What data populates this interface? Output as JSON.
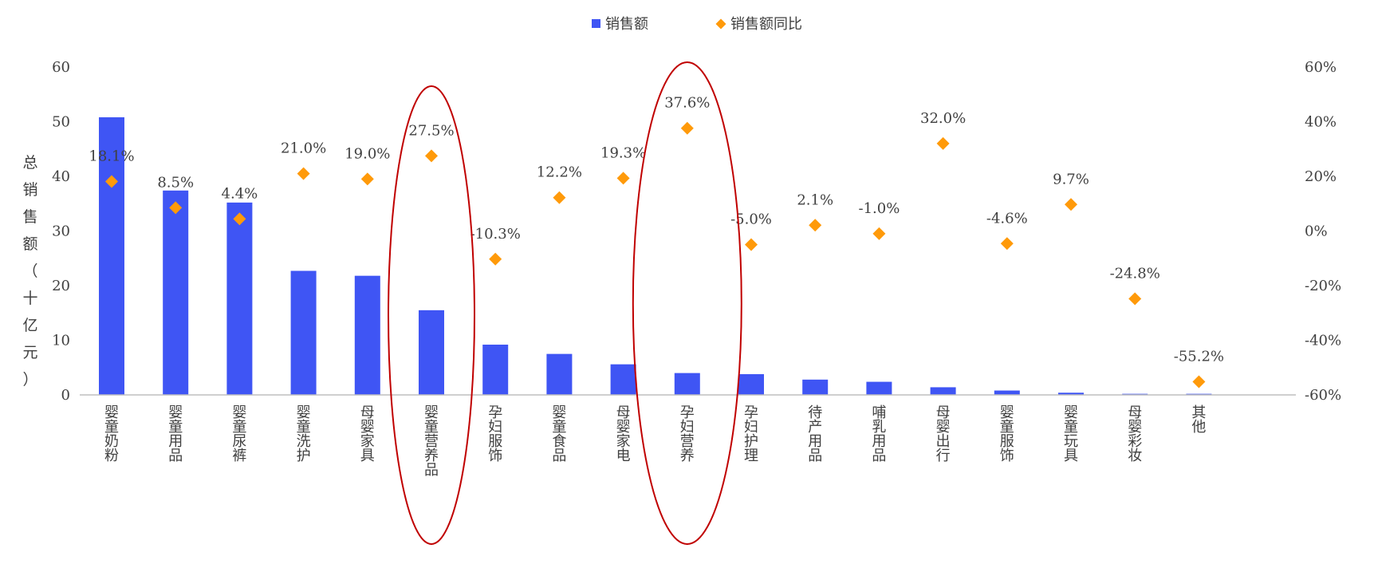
{
  "chart_data": {
    "type": "bar",
    "categories": [
      "婴童奶粉",
      "婴童用品",
      "婴童尿裤",
      "婴童洗护",
      "母婴家具",
      "婴童营养品",
      "孕妇服饰",
      "婴童食品",
      "母婴家电",
      "孕妇营养",
      "孕妇护理",
      "待产用品",
      "哺乳用品",
      "母婴出行",
      "婴童服饰",
      "婴童玩具",
      "母婴彩妆",
      "其他"
    ],
    "series": [
      {
        "name": "销售额",
        "type": "bar",
        "axis": "left",
        "color": "#3f55f4",
        "values": [
          50.8,
          37.4,
          35.2,
          22.7,
          21.8,
          15.5,
          9.2,
          7.5,
          5.6,
          4.0,
          3.8,
          2.8,
          2.4,
          1.4,
          0.8,
          0.4,
          0.2,
          0.2
        ]
      },
      {
        "name": "销售额同比",
        "type": "scatter",
        "axis": "right",
        "color": "#ff9a0a",
        "marker": "diamond",
        "values": [
          18.1,
          8.5,
          4.4,
          21.0,
          19.0,
          27.5,
          -10.3,
          12.2,
          19.3,
          37.6,
          -5.0,
          2.1,
          -1.0,
          32.0,
          -4.6,
          9.7,
          -24.8,
          -55.2
        ],
        "labels": [
          "18.1%",
          "8.5%",
          "4.4%",
          "21.0%",
          "19.0%",
          "27.5%",
          "-10.3%",
          "12.2%",
          "19.3%",
          "37.6%",
          "-5.0%",
          "2.1%",
          "-1.0%",
          "32.0%",
          "-4.6%",
          "9.7%",
          "-24.8%",
          "-55.2%"
        ]
      }
    ],
    "ylabel": "总销售额（十亿元）",
    "ylabel_chars": [
      "总",
      "销",
      "售",
      "额",
      "（",
      "十",
      "亿",
      "元",
      "）"
    ],
    "ylim": [
      0,
      60
    ],
    "yticks": [
      "0",
      "10",
      "20",
      "30",
      "40",
      "50",
      "60"
    ],
    "y2lim": [
      -60,
      60
    ],
    "y2ticks": [
      "-60%",
      "-40%",
      "-20%",
      "0%",
      "20%",
      "40%",
      "60%"
    ],
    "legend": [
      "销售额",
      "销售额同比"
    ],
    "legend_position": "top-center",
    "highlighted_categories": [
      "婴童营养品",
      "孕妇营养"
    ],
    "highlight_color": "#c00000",
    "axis_color": "#bfbfbf"
  }
}
